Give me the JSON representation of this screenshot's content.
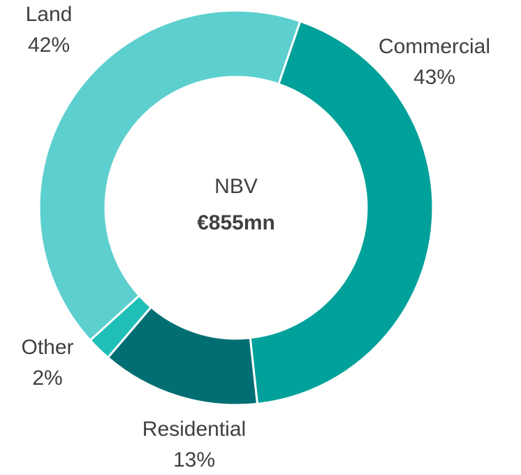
{
  "chart_data": {
    "type": "pie",
    "categories": [
      "Commercial",
      "Residential",
      "Other",
      "Land"
    ],
    "values": [
      43,
      13,
      2,
      42
    ],
    "value_labels": [
      "43%",
      "13%",
      "2%",
      "42%"
    ],
    "colors": [
      "#00a19a",
      "#006e73",
      "#1fbfb8",
      "#5ecfcf"
    ],
    "center_title": "NBV",
    "center_value": "€855mn"
  }
}
